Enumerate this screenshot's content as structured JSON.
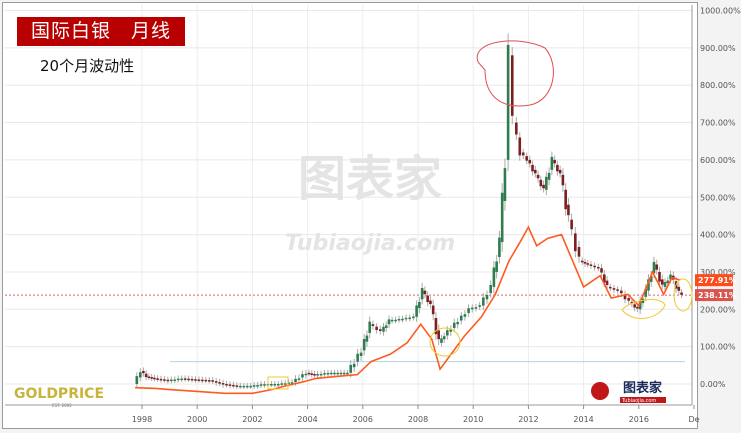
{
  "header": {
    "title": "国际白银　月线",
    "subtitle": "20个月波动性"
  },
  "logos": {
    "goldprice": "GOLDPRICE",
    "goldprice_sub": "EST. 2002",
    "watermark": "图表家",
    "watermark_sub": "Tubiaojia.com"
  },
  "chart_data": {
    "type": "candlestick+line",
    "ylim": [
      -30,
      1000
    ],
    "xlim": [
      1995.3,
      2017.9
    ],
    "y_ticks": [
      "0.00%",
      "100.00%",
      "200.00%",
      "300.00%",
      "400.00%",
      "500.00%",
      "600.00%",
      "700.00%",
      "800.00%",
      "900.00%",
      "1000.00%"
    ],
    "x_ticks": [
      "1998",
      "2000",
      "2002",
      "2004",
      "2006",
      "2008",
      "2010",
      "2012",
      "2014",
      "2016",
      "De"
    ],
    "grid": true,
    "labels": {
      "current_line": "277.91%",
      "current_price": "238.11%"
    },
    "colors": {
      "up": "#2e7d4f",
      "down": "#7a2020",
      "line": "#ff5a1f",
      "label_line": "#ff4a1a",
      "label_price": "#d9534f",
      "annotation_red": "#e05050",
      "annotation_yellow": "#f0c830",
      "ref_line": "#a8d8e8"
    },
    "price": [
      [
        1997.75,
        0
      ],
      [
        1998.0,
        35
      ],
      [
        1998.2,
        20
      ],
      [
        1998.5,
        15
      ],
      [
        1999.0,
        10
      ],
      [
        1999.5,
        15
      ],
      [
        2000.0,
        12
      ],
      [
        2000.5,
        10
      ],
      [
        2001.0,
        0
      ],
      [
        2001.5,
        -5
      ],
      [
        2002.0,
        -5
      ],
      [
        2002.5,
        0
      ],
      [
        2003.0,
        0
      ],
      [
        2003.5,
        5
      ],
      [
        2004.0,
        30
      ],
      [
        2004.3,
        25
      ],
      [
        2004.8,
        30
      ],
      [
        2005.5,
        30
      ],
      [
        2006.0,
        90
      ],
      [
        2006.3,
        160
      ],
      [
        2006.7,
        140
      ],
      [
        2007.0,
        170
      ],
      [
        2007.5,
        175
      ],
      [
        2007.9,
        180
      ],
      [
        2008.2,
        250
      ],
      [
        2008.5,
        210
      ],
      [
        2008.8,
        110
      ],
      [
        2009.0,
        130
      ],
      [
        2009.5,
        170
      ],
      [
        2009.9,
        200
      ],
      [
        2010.3,
        210
      ],
      [
        2010.7,
        260
      ],
      [
        2011.0,
        380
      ],
      [
        2011.2,
        600
      ],
      [
        2011.33,
        880
      ],
      [
        2011.5,
        700
      ],
      [
        2011.75,
        620
      ],
      [
        2012.0,
        600
      ],
      [
        2012.3,
        560
      ],
      [
        2012.6,
        520
      ],
      [
        2012.9,
        600
      ],
      [
        2013.2,
        560
      ],
      [
        2013.5,
        440
      ],
      [
        2013.9,
        330
      ],
      [
        2014.2,
        320
      ],
      [
        2014.6,
        310
      ],
      [
        2014.9,
        260
      ],
      [
        2015.3,
        250
      ],
      [
        2015.7,
        220
      ],
      [
        2016.0,
        200
      ],
      [
        2016.3,
        250
      ],
      [
        2016.6,
        320
      ],
      [
        2016.9,
        260
      ],
      [
        2017.2,
        290
      ],
      [
        2017.5,
        245
      ],
      [
        2017.6,
        238
      ]
    ],
    "volatility": [
      [
        1997.75,
        -10
      ],
      [
        1998.5,
        -12
      ],
      [
        1999.0,
        -15
      ],
      [
        2000.0,
        -20
      ],
      [
        2001.0,
        -25
      ],
      [
        2002.0,
        -25
      ],
      [
        2002.7,
        -15
      ],
      [
        2003.2,
        -5
      ],
      [
        2003.8,
        5
      ],
      [
        2004.3,
        15
      ],
      [
        2005.0,
        20
      ],
      [
        2005.8,
        25
      ],
      [
        2006.3,
        60
      ],
      [
        2007.0,
        80
      ],
      [
        2007.6,
        110
      ],
      [
        2008.1,
        160
      ],
      [
        2008.5,
        120
      ],
      [
        2008.8,
        40
      ],
      [
        2009.2,
        80
      ],
      [
        2009.7,
        130
      ],
      [
        2010.3,
        180
      ],
      [
        2010.8,
        240
      ],
      [
        2011.3,
        330
      ],
      [
        2011.7,
        380
      ],
      [
        2012.0,
        420
      ],
      [
        2012.3,
        370
      ],
      [
        2012.7,
        390
      ],
      [
        2013.2,
        400
      ],
      [
        2013.6,
        330
      ],
      [
        2014.0,
        260
      ],
      [
        2014.6,
        290
      ],
      [
        2015.0,
        230
      ],
      [
        2015.6,
        240
      ],
      [
        2016.0,
        210
      ],
      [
        2016.5,
        300
      ],
      [
        2016.9,
        240
      ],
      [
        2017.2,
        285
      ],
      [
        2017.5,
        278
      ]
    ],
    "reference_price_line": 238.11,
    "reference_blue_line": 60
  }
}
